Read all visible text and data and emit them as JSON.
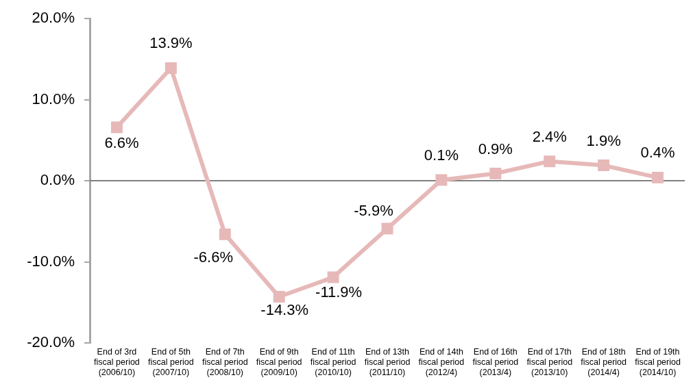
{
  "chart_data": {
    "type": "line",
    "categories": [
      "End of 3rd\nfiscal period\n(2006/10)",
      "End of 5th\nfiscal period\n(2007/10)",
      "End of 7th\nfiscal period\n(2008/10)",
      "End of 9th\nfiscal period\n(2009/10)",
      "End of 11th\nfiscal period\n(2010/10)",
      "End of 13th\nfiscal period\n(2011/10)",
      "End of 14th\nfiscal period\n(2012/4)",
      "End of 16th\nfiscal period\n(2013/4)",
      "End of 17th\nfiscal period\n(2013/10)",
      "End of 18th\nfiscal period\n(2014/4)",
      "End of 19th\nfiscal period\n(2014/10)"
    ],
    "series": [
      {
        "color": "#e6b9b8",
        "values": [
          6.6,
          13.9,
          -6.6,
          -14.3,
          -11.9,
          -5.9,
          0.1,
          0.9,
          2.4,
          1.9,
          0.4
        ],
        "value_labels": [
          "6.6%",
          "13.9%",
          "-6.6%",
          "-14.3%",
          "-11.9%",
          "-5.9%",
          "0.1%",
          "0.9%",
          "2.4%",
          "1.9%",
          "0.4%"
        ]
      }
    ],
    "ylim": [
      -20,
      20
    ],
    "yticks": [
      {
        "value": -20,
        "label": "-20.0%"
      },
      {
        "value": -10,
        "label": "-10.0%"
      },
      {
        "value": 0,
        "label": "0.0%"
      },
      {
        "value": 10,
        "label": "10.0%"
      },
      {
        "value": 20,
        "label": "20.0%"
      }
    ],
    "marker": "square",
    "line_style": "solid"
  }
}
